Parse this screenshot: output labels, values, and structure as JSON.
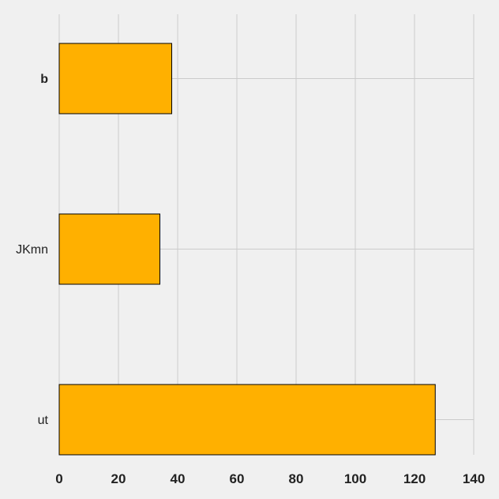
{
  "chart_data": {
    "type": "bar",
    "orientation": "horizontal",
    "categories": [
      "b",
      "JKmn",
      "ut"
    ],
    "values": [
      38,
      34,
      127
    ],
    "category_label_weights": [
      "bold",
      "normal",
      "normal"
    ],
    "xlim": [
      0,
      140
    ],
    "xticks": [
      "0",
      "20",
      "40",
      "60",
      "80",
      "100",
      "120",
      "140"
    ],
    "grid": true,
    "bar_color": "#ffb000",
    "edge_color": "#000000",
    "background_color": "#f0f0f0",
    "grid_color": "#cbcbcb"
  }
}
